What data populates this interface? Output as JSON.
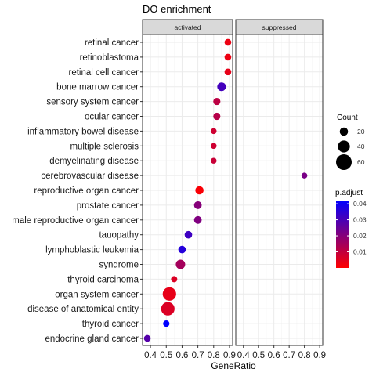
{
  "chart_data": {
    "type": "scatter",
    "title": "DO enrichment",
    "xlabel": "GeneRatio",
    "ylabel": "",
    "xlim": [
      0.35,
      0.92
    ],
    "x_ticks": [
      "0.4",
      "0.5",
      "0.6",
      "0.7",
      "0.8",
      "0.9"
    ],
    "panels": [
      "activated",
      "suppressed"
    ],
    "categories": [
      "retinal cancer",
      "retinoblastoma",
      "retinal cell cancer",
      "bone marrow cancer",
      "sensory system cancer",
      "ocular cancer",
      "inflammatory bowel disease",
      "multiple sclerosis",
      "demyelinating disease",
      "cerebrovascular disease",
      "reproductive organ cancer",
      "prostate cancer",
      "male reproductive organ cancer",
      "tauopathy",
      "lymphoblastic leukemia",
      "syndrome",
      "thyroid carcinoma",
      "organ system cancer",
      "disease of anatomical entity",
      "thyroid cancer",
      "endocrine gland cancer"
    ],
    "points": [
      {
        "panel": "activated",
        "term": "retinal cancer",
        "x": 0.89,
        "count": 12,
        "p_adjust": 0.003
      },
      {
        "panel": "activated",
        "term": "retinoblastoma",
        "x": 0.89,
        "count": 12,
        "p_adjust": 0.003
      },
      {
        "panel": "activated",
        "term": "retinal cell cancer",
        "x": 0.89,
        "count": 12,
        "p_adjust": 0.004
      },
      {
        "panel": "activated",
        "term": "bone marrow cancer",
        "x": 0.85,
        "count": 22,
        "p_adjust": 0.031
      },
      {
        "panel": "activated",
        "term": "sensory system cancer",
        "x": 0.82,
        "count": 14,
        "p_adjust": 0.011
      },
      {
        "panel": "activated",
        "term": "ocular cancer",
        "x": 0.82,
        "count": 14,
        "p_adjust": 0.012
      },
      {
        "panel": "activated",
        "term": "inflammatory bowel disease",
        "x": 0.8,
        "count": 7,
        "p_adjust": 0.008
      },
      {
        "panel": "activated",
        "term": "multiple sclerosis",
        "x": 0.8,
        "count": 7,
        "p_adjust": 0.008
      },
      {
        "panel": "activated",
        "term": "demyelinating disease",
        "x": 0.8,
        "count": 7,
        "p_adjust": 0.009
      },
      {
        "panel": "suppressed",
        "term": "cerebrovascular disease",
        "x": 0.8,
        "count": 7,
        "p_adjust": 0.022
      },
      {
        "panel": "activated",
        "term": "reproductive organ cancer",
        "x": 0.71,
        "count": 20,
        "p_adjust": 0.001
      },
      {
        "panel": "activated",
        "term": "prostate cancer",
        "x": 0.7,
        "count": 17,
        "p_adjust": 0.02
      },
      {
        "panel": "activated",
        "term": "male reproductive organ cancer",
        "x": 0.7,
        "count": 17,
        "p_adjust": 0.021
      },
      {
        "panel": "activated",
        "term": "tauopathy",
        "x": 0.64,
        "count": 16,
        "p_adjust": 0.032
      },
      {
        "panel": "activated",
        "term": "lymphoblastic leukemia",
        "x": 0.6,
        "count": 16,
        "p_adjust": 0.036
      },
      {
        "panel": "activated",
        "term": "syndrome",
        "x": 0.59,
        "count": 26,
        "p_adjust": 0.015
      },
      {
        "panel": "activated",
        "term": "thyroid carcinoma",
        "x": 0.55,
        "count": 9,
        "p_adjust": 0.006
      },
      {
        "panel": "activated",
        "term": "organ system cancer",
        "x": 0.52,
        "count": 48,
        "p_adjust": 0.004
      },
      {
        "panel": "activated",
        "term": "disease of anatomical entity",
        "x": 0.51,
        "count": 48,
        "p_adjust": 0.006
      },
      {
        "panel": "activated",
        "term": "thyroid cancer",
        "x": 0.5,
        "count": 10,
        "p_adjust": 0.042
      },
      {
        "panel": "activated",
        "term": "endocrine gland cancer",
        "x": 0.38,
        "count": 12,
        "p_adjust": 0.028
      }
    ],
    "legend": {
      "placement": "right",
      "size": {
        "title": "Count",
        "breaks": [
          20,
          40,
          60
        ],
        "labels": [
          "20",
          "40",
          "60"
        ],
        "range": [
          5,
          60
        ]
      },
      "color": {
        "title": "p.adjust",
        "breaks": [
          0.01,
          0.02,
          0.03,
          0.04
        ],
        "labels": [
          "0.01",
          "0.02",
          "0.03",
          "0.04"
        ],
        "range": [
          0.0,
          0.042
        ],
        "low_color": "#ff0000",
        "high_color": "#0000ff"
      }
    },
    "grid": true,
    "colors": {
      "panel_border": "#333333",
      "strip_fill": "#d9d9d9",
      "grid_major": "#ebebeb",
      "grid_minor": "#f5f5f5"
    }
  }
}
